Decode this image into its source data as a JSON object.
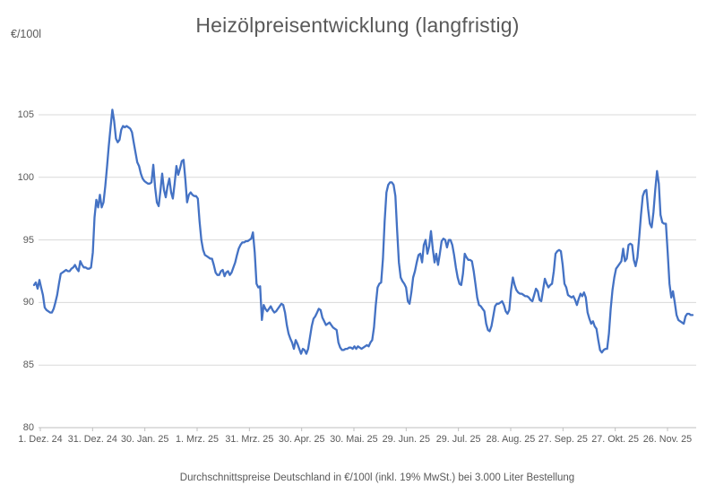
{
  "footer": {
    "note": "Durchschnittspreise Deutschland in €/100l (inkl. 19% MwSt.) bei 3.000 Liter Bestellung"
  },
  "chart_data": {
    "type": "line",
    "title": "Heizölpreisentwicklung (langfristig)",
    "ylabel": "€/100l",
    "xlabel": "",
    "ylim": [
      80,
      106.5
    ],
    "y_ticks": [
      80,
      85,
      90,
      95,
      100,
      105
    ],
    "x_tick_labels": [
      "1. Dez. 24",
      "31. Dez. 24",
      "30. Jan. 25",
      "1. Mrz. 25",
      "31. Mrz. 25",
      "30. Apr. 25",
      "30. Mai. 25",
      "29. Jun. 25",
      "29. Jul. 25",
      "28. Aug. 25",
      "27. Sep. 25",
      "27. Okt. 25",
      "26. Nov. 25"
    ],
    "grid": "horizontal",
    "legend": "none",
    "line_color": "#4472C4",
    "gridline_color": "#d9d9d9",
    "axis_color": "#bfbfbf",
    "series": [
      {
        "values": [
          91.4,
          91.6,
          91.1,
          91.8,
          91.2,
          90.6,
          89.6,
          89.4,
          89.3,
          89.2,
          89.2,
          89.5,
          90.0,
          90.6,
          91.5,
          92.3,
          92.4,
          92.5,
          92.6,
          92.5,
          92.5,
          92.7,
          92.8,
          93.0,
          92.7,
          92.5,
          93.3,
          93.0,
          92.8,
          92.8,
          92.7,
          92.7,
          92.8,
          94.0,
          96.8,
          98.2,
          97.6,
          98.6,
          97.6,
          98.0,
          99.3,
          100.8,
          102.5,
          104.0,
          105.4,
          104.5,
          103.1,
          102.8,
          103.0,
          103.8,
          104.1,
          104.0,
          104.1,
          104.0,
          103.9,
          103.6,
          102.8,
          102.0,
          101.2,
          100.9,
          100.3,
          99.9,
          99.7,
          99.6,
          99.5,
          99.5,
          99.6,
          101.0,
          99.2,
          98.0,
          97.7,
          98.9,
          100.3,
          99.0,
          98.4,
          99.3,
          99.9,
          98.8,
          98.3,
          99.5,
          100.9,
          100.2,
          100.7,
          101.3,
          101.4,
          99.8,
          98.0,
          98.6,
          98.8,
          98.6,
          98.5,
          98.5,
          98.3,
          96.5,
          95.0,
          94.2,
          93.8,
          93.7,
          93.6,
          93.5,
          93.5,
          93.0,
          92.4,
          92.2,
          92.2,
          92.5,
          92.6,
          92.1,
          92.4,
          92.5,
          92.2,
          92.4,
          92.8,
          93.2,
          93.8,
          94.3,
          94.6,
          94.8,
          94.8,
          94.9,
          94.9,
          95.0,
          95.1,
          95.6,
          94.0,
          91.5,
          91.2,
          91.3,
          88.6,
          89.8,
          89.5,
          89.3,
          89.5,
          89.7,
          89.4,
          89.2,
          89.3,
          89.5,
          89.7,
          89.9,
          89.8,
          89.2,
          88.2,
          87.5,
          87.1,
          86.8,
          86.3,
          87.0,
          86.7,
          86.3,
          85.9,
          86.3,
          86.2,
          85.9,
          86.3,
          87.2,
          88.1,
          88.7,
          88.9,
          89.2,
          89.5,
          89.4,
          88.8,
          88.5,
          88.2,
          88.3,
          88.4,
          88.2,
          88.0,
          87.9,
          87.8,
          86.8,
          86.4,
          86.2,
          86.2,
          86.3,
          86.3,
          86.4,
          86.4,
          86.3,
          86.5,
          86.3,
          86.5,
          86.4,
          86.3,
          86.4,
          86.5,
          86.6,
          86.5,
          86.8,
          87.0,
          88.0,
          89.8,
          91.2,
          91.5,
          91.6,
          93.5,
          96.5,
          98.8,
          99.4,
          99.6,
          99.6,
          99.4,
          98.5,
          95.8,
          93.2,
          92.0,
          91.7,
          91.5,
          91.2,
          90.1,
          89.9,
          90.8,
          92.0,
          92.5,
          93.2,
          93.8,
          93.9,
          93.2,
          94.6,
          95.0,
          93.9,
          94.5,
          95.7,
          94.3,
          93.2,
          93.9,
          93.0,
          93.9,
          94.9,
          95.1,
          95.0,
          94.4,
          95.0,
          95.0,
          94.6,
          93.8,
          92.8,
          92.0,
          91.5,
          91.4,
          92.3,
          93.9,
          93.6,
          93.4,
          93.4,
          93.3,
          92.5,
          91.5,
          90.4,
          89.8,
          89.7,
          89.5,
          89.3,
          88.3,
          87.8,
          87.7,
          88.1,
          88.9,
          89.7,
          89.9,
          89.9,
          90.0,
          90.1,
          89.8,
          89.3,
          89.1,
          89.4,
          91.0,
          92.0,
          91.4,
          91.0,
          90.8,
          90.7,
          90.7,
          90.6,
          90.5,
          90.5,
          90.4,
          90.2,
          90.1,
          90.6,
          91.1,
          90.9,
          90.2,
          90.1,
          91.0,
          91.9,
          91.5,
          91.2,
          91.4,
          91.5,
          92.5,
          93.9,
          94.1,
          94.2,
          94.1,
          93.0,
          91.5,
          91.2,
          90.6,
          90.5,
          90.4,
          90.5,
          90.2,
          89.8,
          90.3,
          90.7,
          90.5,
          90.8,
          90.4,
          89.2,
          88.7,
          88.3,
          88.5,
          88.1,
          87.9,
          87.0,
          86.2,
          86.0,
          86.2,
          86.3,
          86.3,
          87.5,
          89.5,
          91.0,
          92.0,
          92.7,
          92.9,
          93.1,
          93.3,
          94.3,
          93.3,
          93.5,
          94.6,
          94.7,
          94.6,
          93.4,
          92.9,
          93.6,
          95.2,
          97.0,
          98.5,
          98.9,
          99.0,
          97.5,
          96.3,
          96.0,
          97.2,
          99.0,
          100.5,
          99.5,
          97.0,
          96.4,
          96.3,
          96.3,
          94.0,
          91.5,
          90.4,
          90.9,
          90.0,
          89.0,
          88.6,
          88.5,
          88.4,
          88.3,
          88.9,
          89.1,
          89.1,
          89.0,
          89.0
        ]
      }
    ]
  }
}
